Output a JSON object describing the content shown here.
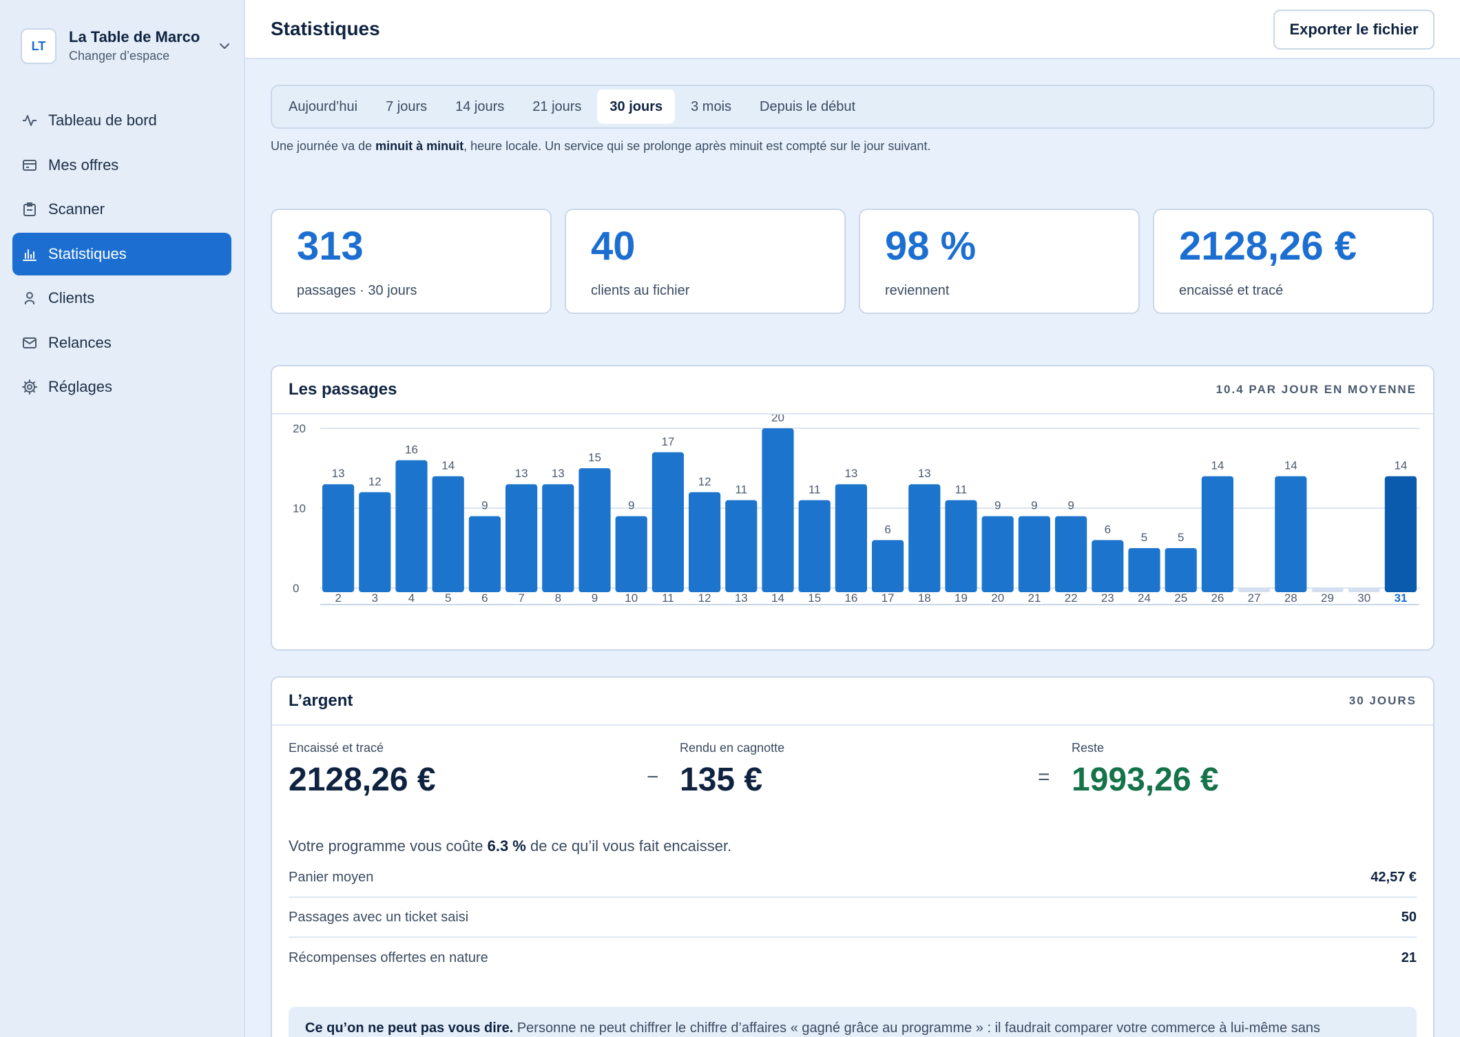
{
  "workspace": {
    "initials": "LT",
    "name": "La Table de Marco",
    "switch_label": "Changer d’espace"
  },
  "nav": [
    {
      "label": "Tableau de bord",
      "icon": "activity-icon"
    },
    {
      "label": "Mes offres",
      "icon": "card-icon"
    },
    {
      "label": "Scanner",
      "icon": "clipboard-icon"
    },
    {
      "label": "Statistiques",
      "icon": "bar-chart-icon",
      "active": true
    },
    {
      "label": "Clients",
      "icon": "user-icon"
    },
    {
      "label": "Relances",
      "icon": "mail-icon"
    },
    {
      "label": "Réglages",
      "icon": "gear-icon"
    }
  ],
  "header": {
    "title": "Statistiques",
    "export_label": "Exporter le fichier"
  },
  "tabs": [
    "Aujourd’hui",
    "7 jours",
    "14 jours",
    "21 jours",
    "30 jours",
    "3 mois",
    "Depuis le début"
  ],
  "active_tab": "30 jours",
  "note": {
    "prefix": "Une journée va de ",
    "bold": "minuit à minuit",
    "suffix": ", heure locale. Un service qui se prolonge après minuit est compté sur le jour suivant."
  },
  "stats": [
    {
      "value": "313",
      "label": "passages · 30 jours"
    },
    {
      "value": "40",
      "label": "clients au fichier"
    },
    {
      "value": "98 %",
      "label": "reviennent"
    },
    {
      "value": "2128,26 €",
      "label": "encaissé et tracé"
    }
  ],
  "passages": {
    "title": "Les passages",
    "meta": "10.4 PAR JOUR EN MOYENNE"
  },
  "chart_data": {
    "type": "bar",
    "categories": [
      "2",
      "3",
      "4",
      "5",
      "6",
      "7",
      "8",
      "9",
      "10",
      "11",
      "12",
      "13",
      "14",
      "15",
      "16",
      "17",
      "18",
      "19",
      "20",
      "21",
      "22",
      "23",
      "24",
      "25",
      "26",
      "27",
      "28",
      "29",
      "30",
      "31"
    ],
    "values": [
      13,
      12,
      16,
      14,
      9,
      13,
      13,
      15,
      9,
      17,
      12,
      11,
      20,
      11,
      13,
      6,
      13,
      11,
      9,
      9,
      9,
      6,
      5,
      5,
      14,
      0,
      14,
      0,
      0,
      14
    ],
    "ylim": [
      0,
      20
    ],
    "yticks": [
      0,
      10,
      20
    ],
    "highlight": "31",
    "colors": {
      "bar": "#1c74cc",
      "highlight": "#0a5aad",
      "empty": "#d3def0"
    }
  },
  "money": {
    "title": "L’argent",
    "meta": "30 JOURS",
    "encaisse_label": "Encaissé et tracé",
    "encaisse_value": "2128,26 €",
    "minus": "−",
    "cagnotte_label": "Rendu en cagnotte",
    "cagnotte_value": "135 €",
    "equals": "=",
    "reste_label": "Reste",
    "reste_value": "1993,26 €",
    "cost_prefix": "Votre programme vous coûte ",
    "cost_pct": "6.3 %",
    "cost_suffix": " de ce qu’il vous fait encaisser.",
    "rows": [
      {
        "label": "Panier moyen",
        "value": "42,57 €"
      },
      {
        "label": "Passages avec un ticket saisi",
        "value": "50"
      },
      {
        "label": "Récompenses offertes en nature",
        "value": "21"
      }
    ],
    "info_bold": "Ce qu’on ne peut pas vous dire.",
    "info_text": " Personne ne peut chiffrer le chiffre d’affaires « gagné grâce au programme » : il faudrait comparer votre commerce à lui-même sans"
  }
}
